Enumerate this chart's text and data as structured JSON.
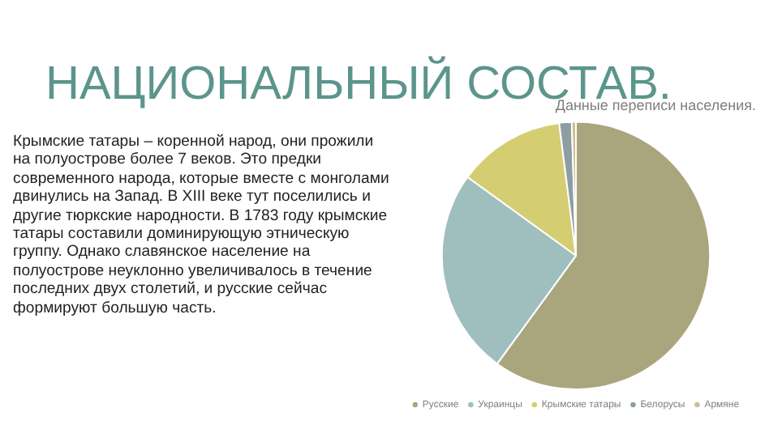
{
  "chart_data": {
    "type": "pie",
    "title": "НАЦИОНАЛЬНЫЙ СОСТАВ.",
    "subtitle": "Данные переписи населения.",
    "categories": [
      "Русские",
      "Украинцы",
      "Крымские татары",
      "Белорусы",
      "Армяне"
    ],
    "values": [
      60,
      25,
      13,
      1.5,
      0.5
    ],
    "colors": [
      "#a9a67e",
      "#9ebfbd",
      "#d5cd72",
      "#8d9ea3",
      "#cbbd8f"
    ],
    "legend": "bottom",
    "annotations": [
      "Крымские татары – коренной народ, они прожили на полуострове более 7 веков. Это предки современного народа, которые вместе с монголами двинулись на Запад. В XIII веке тут поселились и другие тюркские народности. В 1783 году крымские татары составили доминирующую этническую группу. Однако славянское население на полуострове неуклонно увеличивалось в течение последних двух столетий, и русские сейчас формируют большую часть."
    ]
  }
}
